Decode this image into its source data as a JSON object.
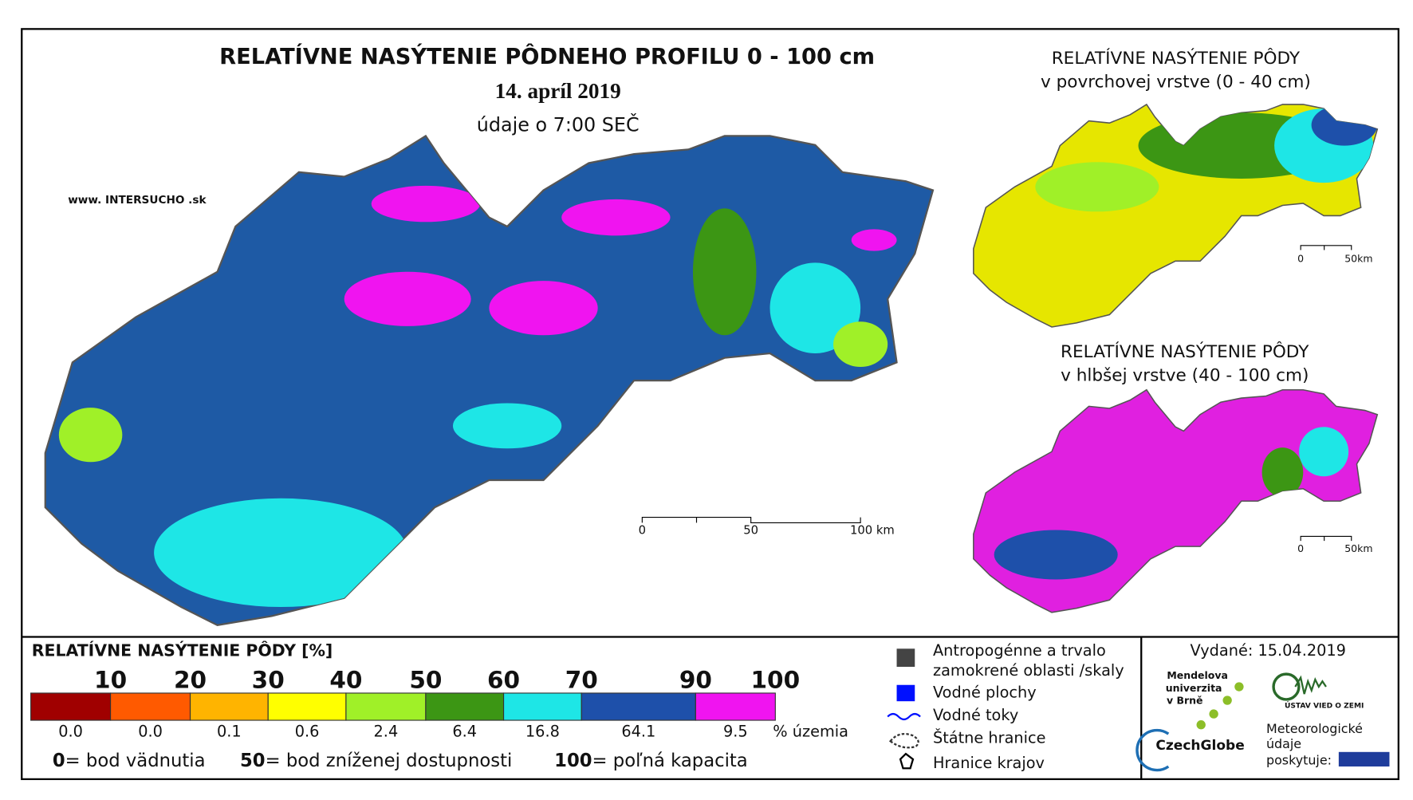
{
  "main_map": {
    "title": "RELATÍVNE NASÝTENIE PÔDNEHO PROFILU 0 - 100 cm",
    "date": "14. apríl 2019",
    "time": "údaje o 7:00 SEČ",
    "source": "www. INTERSUCHO .sk",
    "scale": [
      "0",
      "50",
      "100 km"
    ]
  },
  "surface_map": {
    "title": "RELATÍVNE NASÝTENIE PÔDY",
    "subtitle": "v povrchovej vrstve (0 - 40 cm)",
    "scale": [
      "0",
      "50km"
    ]
  },
  "deep_map": {
    "title": "RELATÍVNE NASÝTENIE PÔDY",
    "subtitle": "v hlbšej vrstve (40 - 100 cm)",
    "scale": [
      "0",
      "50km"
    ]
  },
  "legend": {
    "title": "RELATÍVNE NASÝTENIE PÔDY [%]",
    "breaks": [
      10,
      20,
      30,
      40,
      50,
      60,
      70,
      90,
      100
    ],
    "colors": [
      "#a00000",
      "#ff5a00",
      "#ffb400",
      "#ffff00",
      "#a0f028",
      "#3c9614",
      "#1ee6e6",
      "#1e50aa",
      "#f014f0"
    ],
    "shares": [
      "0.0",
      "0.0",
      "0.1",
      "0.6",
      "2.4",
      "6.4",
      "16.8",
      "64.1",
      "9.5"
    ],
    "unit": "% územia",
    "notes": [
      {
        "value": "0",
        "text": "= bod vädnutia"
      },
      {
        "value": "50",
        "text": "= bod zníženej dostupnosti"
      },
      {
        "value": "100",
        "text": "= poľná kapacita"
      }
    ]
  },
  "symbols": [
    "Antropogénne a trvalo",
    "zamokrené oblasti /skaly",
    "Vodné plochy",
    "Vodné toky",
    "Štátne hranice",
    "Hranice krajov"
  ],
  "issued": "Vydané: 15.04.2019",
  "logos": {
    "mendel": [
      "Mendelova",
      "univerzita",
      "v Brně"
    ],
    "czechglobe": "CzechGlobe",
    "ustav": "ÚSTAV VIED O ZEMI",
    "meteo": [
      "Meteorologické",
      "údaje",
      "poskytuje:"
    ]
  }
}
